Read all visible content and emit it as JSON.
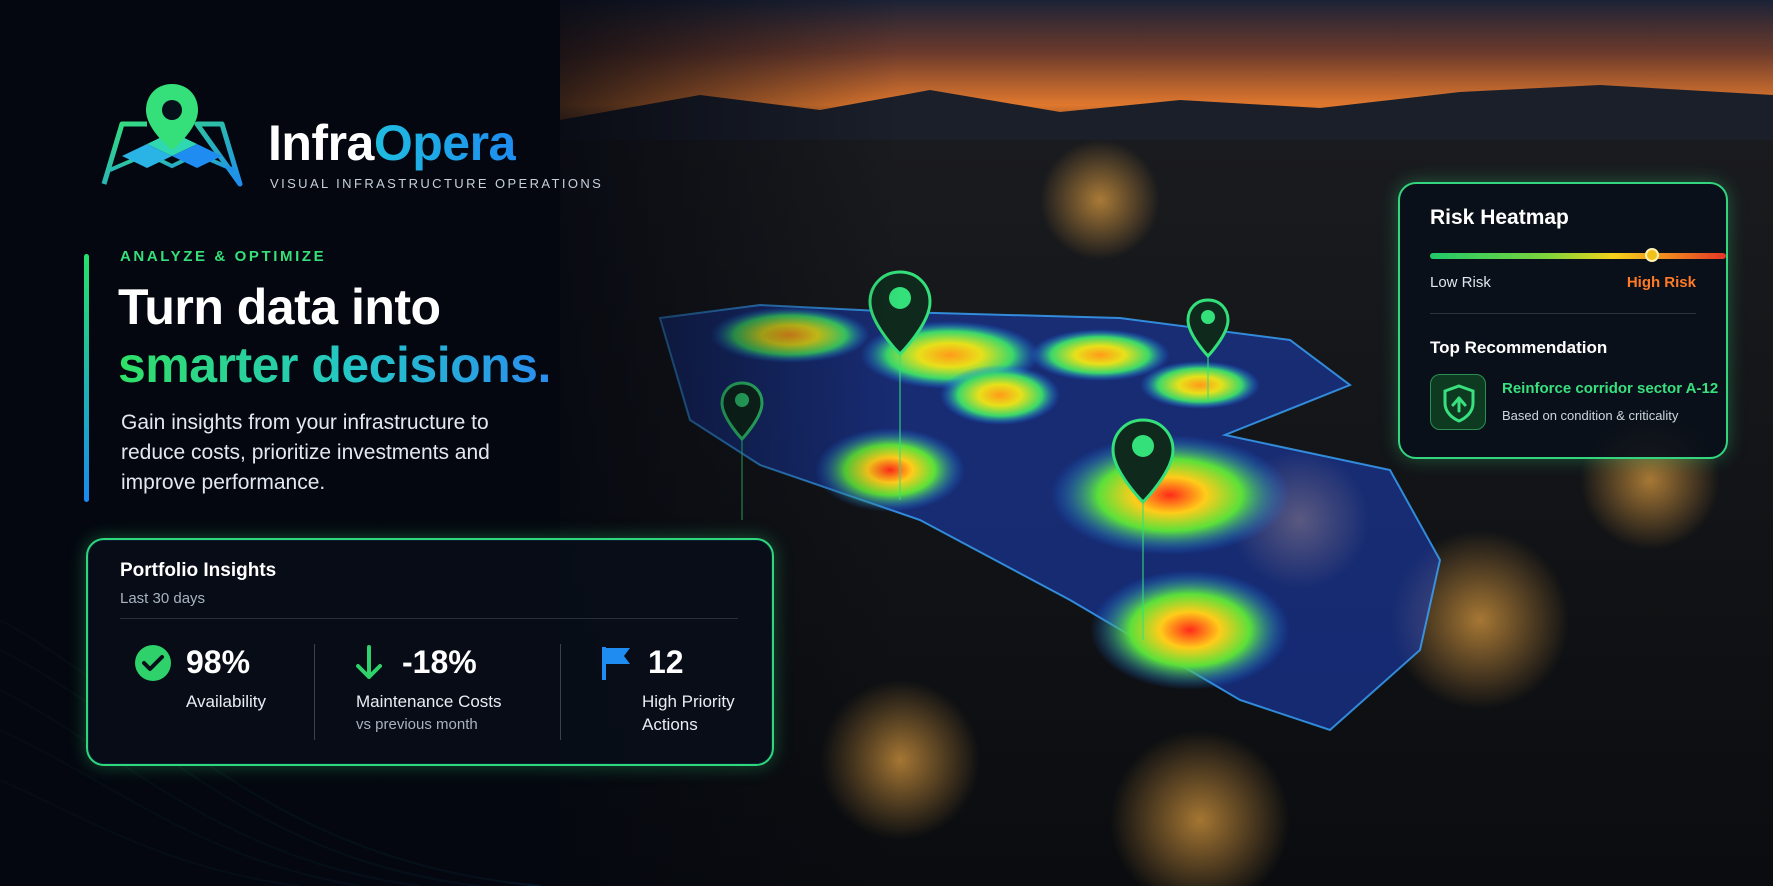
{
  "brand": {
    "name_part1": "Infra",
    "name_part2": "Opera",
    "tagline": "VISUAL INFRASTRUCTURE OPERATIONS"
  },
  "hero": {
    "eyebrow": "ANALYZE & OPTIMIZE",
    "headline_line1": "Turn data into",
    "headline_line2": "smarter decisions.",
    "body": "Gain insights from your infrastructure to reduce costs, prioritize investments and improve performance."
  },
  "portfolio": {
    "title": "Portfolio Insights",
    "period": "Last 30 days",
    "stats": [
      {
        "icon": "check-circle-icon",
        "value": "98%",
        "label": "Availability",
        "sublabel": ""
      },
      {
        "icon": "arrow-down-icon",
        "value": "-18%",
        "label": "Maintenance Costs",
        "sublabel": "vs previous month"
      },
      {
        "icon": "flag-icon",
        "value": "12",
        "label_line1": "High Priority",
        "label_line2": "Actions"
      }
    ]
  },
  "risk": {
    "title": "Risk Heatmap",
    "low_label": "Low Risk",
    "high_label": "High Risk",
    "level": 0.75,
    "recommendation_title": "Top Recommendation",
    "recommendation_icon": "shield-icon",
    "recommendation_heading": "Reinforce corridor sector A-12",
    "recommendation_detail": "Based on condition & criticality"
  },
  "colors": {
    "accent_green": "#35e07a",
    "accent_blue": "#1e8cf0",
    "high_risk": "#ff7a26"
  }
}
